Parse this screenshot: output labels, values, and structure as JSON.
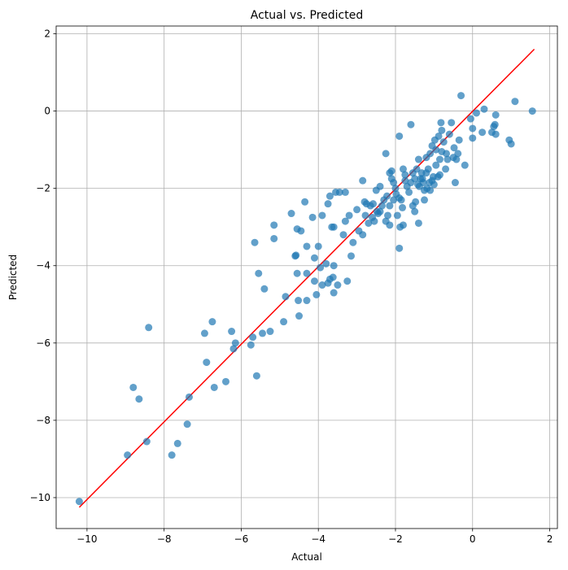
{
  "chart_data": {
    "type": "scatter",
    "title": "Actual vs. Predicted",
    "xlabel": "Actual",
    "ylabel": "Predicted",
    "xlim": [
      -10.8,
      2.2
    ],
    "ylim": [
      -10.8,
      2.2
    ],
    "xticks": [
      -10,
      -8,
      -6,
      -4,
      -2,
      0,
      2
    ],
    "yticks": [
      -10,
      -8,
      -6,
      -4,
      -2,
      0,
      2
    ],
    "tick_labels": [
      "−10",
      "−8",
      "−6",
      "−4",
      "−2",
      "0",
      "2"
    ],
    "grid": true,
    "point_color": "#1f77b4",
    "line_color": "#ff0000",
    "reference_line": {
      "x": [
        -10.2,
        1.6
      ],
      "y": [
        -10.25,
        1.6
      ]
    },
    "points": [
      [
        -10.2,
        -10.1
      ],
      [
        -8.95,
        -8.9
      ],
      [
        -8.8,
        -7.15
      ],
      [
        -8.65,
        -7.45
      ],
      [
        -8.45,
        -8.55
      ],
      [
        -8.4,
        -5.6
      ],
      [
        -7.8,
        -8.9
      ],
      [
        -7.65,
        -8.6
      ],
      [
        -7.4,
        -8.1
      ],
      [
        -7.35,
        -7.4
      ],
      [
        -6.95,
        -5.75
      ],
      [
        -6.9,
        -6.5
      ],
      [
        -6.75,
        -5.45
      ],
      [
        -6.7,
        -7.15
      ],
      [
        -6.4,
        -7.0
      ],
      [
        -6.25,
        -5.7
      ],
      [
        -6.2,
        -6.15
      ],
      [
        -6.15,
        -6.0
      ],
      [
        -5.75,
        -6.05
      ],
      [
        -5.7,
        -5.85
      ],
      [
        -5.65,
        -3.4
      ],
      [
        -5.6,
        -6.85
      ],
      [
        -5.55,
        -4.2
      ],
      [
        -5.45,
        -5.75
      ],
      [
        -5.4,
        -4.6
      ],
      [
        -5.25,
        -5.7
      ],
      [
        -5.15,
        -2.95
      ],
      [
        -5.15,
        -3.3
      ],
      [
        -4.9,
        -5.45
      ],
      [
        -4.85,
        -4.8
      ],
      [
        -4.7,
        -2.65
      ],
      [
        -4.6,
        -3.75
      ],
      [
        -4.58,
        -3.73
      ],
      [
        -4.55,
        -3.05
      ],
      [
        -4.55,
        -4.2
      ],
      [
        -4.52,
        -4.9
      ],
      [
        -4.5,
        -5.3
      ],
      [
        -4.45,
        -3.1
      ],
      [
        -4.35,
        -2.35
      ],
      [
        -4.3,
        -3.5
      ],
      [
        -4.3,
        -4.9
      ],
      [
        -4.3,
        -4.2
      ],
      [
        -4.15,
        -2.75
      ],
      [
        -4.1,
        -3.8
      ],
      [
        -4.1,
        -4.4
      ],
      [
        -4.05,
        -4.75
      ],
      [
        -4.0,
        -3.5
      ],
      [
        -3.95,
        -4.05
      ],
      [
        -3.9,
        -2.7
      ],
      [
        -3.9,
        -4.5
      ],
      [
        -3.8,
        -3.95
      ],
      [
        -3.75,
        -2.4
      ],
      [
        -3.75,
        -4.45
      ],
      [
        -3.7,
        -2.2
      ],
      [
        -3.7,
        -4.35
      ],
      [
        -3.65,
        -3.0
      ],
      [
        -3.62,
        -4.3
      ],
      [
        -3.6,
        -3.0
      ],
      [
        -3.6,
        -4.0
      ],
      [
        -3.6,
        -4.7
      ],
      [
        -3.55,
        -2.1
      ],
      [
        -3.5,
        -4.5
      ],
      [
        -3.45,
        -2.1
      ],
      [
        -3.35,
        -3.2
      ],
      [
        -3.3,
        -2.1
      ],
      [
        -3.3,
        -2.85
      ],
      [
        -3.25,
        -4.4
      ],
      [
        -3.2,
        -2.7
      ],
      [
        -3.15,
        -3.75
      ],
      [
        -3.1,
        -3.4
      ],
      [
        -3.0,
        -2.55
      ],
      [
        -2.95,
        -3.1
      ],
      [
        -2.85,
        -3.2
      ],
      [
        -2.85,
        -1.8
      ],
      [
        -2.8,
        -2.35
      ],
      [
        -2.78,
        -2.7
      ],
      [
        -2.75,
        -2.4
      ],
      [
        -2.7,
        -2.9
      ],
      [
        -2.65,
        -2.45
      ],
      [
        -2.6,
        -2.75
      ],
      [
        -2.58,
        -2.4
      ],
      [
        -2.55,
        -2.85
      ],
      [
        -2.5,
        -2.05
      ],
      [
        -2.48,
        -2.6
      ],
      [
        -2.45,
        -2.65
      ],
      [
        -2.4,
        -2.6
      ],
      [
        -2.4,
        -1.95
      ],
      [
        -2.35,
        -2.45
      ],
      [
        -2.3,
        -2.3
      ],
      [
        -2.25,
        -1.1
      ],
      [
        -2.25,
        -2.85
      ],
      [
        -2.22,
        -2.2
      ],
      [
        -2.2,
        -2.7
      ],
      [
        -2.15,
        -1.6
      ],
      [
        -2.15,
        -2.45
      ],
      [
        -2.15,
        -2.95
      ],
      [
        -2.1,
        -1.75
      ],
      [
        -2.1,
        -1.55
      ],
      [
        -2.05,
        -2.3
      ],
      [
        -2.05,
        -1.85
      ],
      [
        -2.0,
        -2.0
      ],
      [
        -1.98,
        -2.15
      ],
      [
        -1.95,
        -2.7
      ],
      [
        -1.9,
        -0.65
      ],
      [
        -1.9,
        -2.25
      ],
      [
        -1.9,
        -3.55
      ],
      [
        -1.88,
        -3.0
      ],
      [
        -1.85,
        -2.3
      ],
      [
        -1.82,
        -2.5
      ],
      [
        -1.8,
        -2.95
      ],
      [
        -1.8,
        -1.5
      ],
      [
        -1.75,
        -1.8
      ],
      [
        -1.75,
        -1.65
      ],
      [
        -1.7,
        -1.95
      ],
      [
        -1.65,
        -2.1
      ],
      [
        -1.6,
        -1.85
      ],
      [
        -1.6,
        -0.35
      ],
      [
        -1.55,
        -2.45
      ],
      [
        -1.55,
        -1.6
      ],
      [
        -1.5,
        -2.6
      ],
      [
        -1.5,
        -1.75
      ],
      [
        -1.48,
        -2.35
      ],
      [
        -1.45,
        -1.5
      ],
      [
        -1.42,
        -1.9
      ],
      [
        -1.4,
        -2.9
      ],
      [
        -1.4,
        -1.25
      ],
      [
        -1.38,
        -1.95
      ],
      [
        -1.35,
        -1.75
      ],
      [
        -1.32,
        -1.6
      ],
      [
        -1.3,
        -1.75
      ],
      [
        -1.28,
        -1.85
      ],
      [
        -1.25,
        -2.05
      ],
      [
        -1.25,
        -2.3
      ],
      [
        -1.2,
        -1.2
      ],
      [
        -1.2,
        -1.6
      ],
      [
        -1.18,
        -2.0
      ],
      [
        -1.15,
        -1.5
      ],
      [
        -1.12,
        -1.85
      ],
      [
        -1.1,
        -1.1
      ],
      [
        -1.1,
        -2.05
      ],
      [
        -1.05,
        -1.8
      ],
      [
        -1.05,
        -0.9
      ],
      [
        -1.02,
        -1.7
      ],
      [
        -1.0,
        -1.9
      ],
      [
        -0.98,
        -0.75
      ],
      [
        -0.95,
        -1.4
      ],
      [
        -0.95,
        -1.0
      ],
      [
        -0.9,
        -1.7
      ],
      [
        -0.88,
        -0.65
      ],
      [
        -0.85,
        -1.25
      ],
      [
        -0.85,
        -1.65
      ],
      [
        -0.82,
        -0.3
      ],
      [
        -0.8,
        -1.05
      ],
      [
        -0.8,
        -0.5
      ],
      [
        -0.75,
        -0.8
      ],
      [
        -0.7,
        -1.5
      ],
      [
        -0.68,
        -1.1
      ],
      [
        -0.65,
        -1.25
      ],
      [
        -0.6,
        -0.6
      ],
      [
        -0.55,
        -0.3
      ],
      [
        -0.5,
        -1.2
      ],
      [
        -0.48,
        -0.95
      ],
      [
        -0.45,
        -1.85
      ],
      [
        -0.42,
        -1.25
      ],
      [
        -0.38,
        -1.1
      ],
      [
        -0.35,
        -0.75
      ],
      [
        -0.3,
        0.4
      ],
      [
        -0.2,
        -1.4
      ],
      [
        -0.05,
        -0.2
      ],
      [
        0.0,
        -0.7
      ],
      [
        0.0,
        -0.45
      ],
      [
        0.1,
        -0.05
      ],
      [
        0.25,
        -0.55
      ],
      [
        0.3,
        0.05
      ],
      [
        0.5,
        -0.55
      ],
      [
        0.55,
        -0.4
      ],
      [
        0.58,
        -0.35
      ],
      [
        0.6,
        -0.6
      ],
      [
        0.6,
        -0.1
      ],
      [
        0.95,
        -0.75
      ],
      [
        1.0,
        -0.85
      ],
      [
        1.1,
        0.25
      ],
      [
        1.55,
        0.0
      ]
    ]
  }
}
